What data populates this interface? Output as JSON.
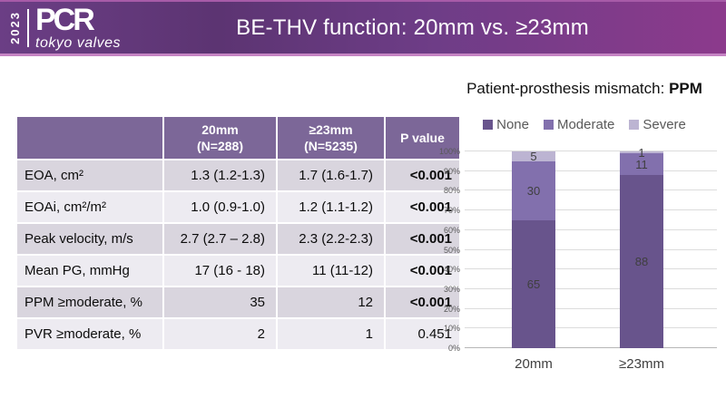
{
  "header": {
    "year": "2023",
    "logo_main": "PCR",
    "logo_sub": "tokyo valves",
    "title": "BE-THV function: 20mm vs. ≥23mm"
  },
  "table": {
    "columns": [
      "",
      "20mm\n(N=288)",
      "≥23mm\n(N=5235)",
      "P value"
    ],
    "rows": [
      {
        "label": "EOA, cm²",
        "v20": "1.3 (1.2-1.3)",
        "v23": "1.7 (1.6-1.7)",
        "p": "<0.001"
      },
      {
        "label": "EOAi, cm²/m²",
        "v20": "1.0 (0.9-1.0)",
        "v23": "1.2 (1.1-1.2)",
        "p": "<0.001"
      },
      {
        "label": "Peak velocity, m/s",
        "v20": "2.7 (2.7 – 2.8)",
        "v23": "2.3 (2.2-2.3)",
        "p": "<0.001"
      },
      {
        "label": "Mean PG, mmHg",
        "v20": "17 (16 - 18)",
        "v23": "11 (11-12)",
        "p": "<0.001"
      },
      {
        "label": "PPM ≥moderate, %",
        "v20": "35",
        "v23": "12",
        "p": "<0.001"
      },
      {
        "label": "PVR ≥moderate, %",
        "v20": "2",
        "v23": "1",
        "p": "0.451"
      }
    ]
  },
  "chart": {
    "title_prefix": "Patient-prosthesis mismatch: ",
    "title_bold": "PPM"
  },
  "chart_data": {
    "type": "bar",
    "stacked": true,
    "percent_stacked": true,
    "categories": [
      "20mm",
      "≥23mm"
    ],
    "series": [
      {
        "name": "None",
        "values": [
          65,
          88
        ],
        "color": "#68548c"
      },
      {
        "name": "Moderate",
        "values": [
          30,
          11
        ],
        "color": "#8270ad"
      },
      {
        "name": "Severe",
        "values": [
          5,
          1
        ],
        "color": "#bcb4d2"
      }
    ],
    "y_ticks": [
      "0%",
      "10%",
      "20%",
      "30%",
      "40%",
      "50%",
      "60%",
      "70%",
      "80%",
      "90%",
      "100%"
    ],
    "ylim": [
      0,
      100
    ],
    "grid": true,
    "legend_position": "top",
    "data_labels": true
  },
  "colors": {
    "banner_left": "#6b3e85",
    "banner_right": "#8c3a8c",
    "table_header_bg": "#7c6798",
    "row_odd": "#d9d5de",
    "row_even": "#edebf1"
  }
}
